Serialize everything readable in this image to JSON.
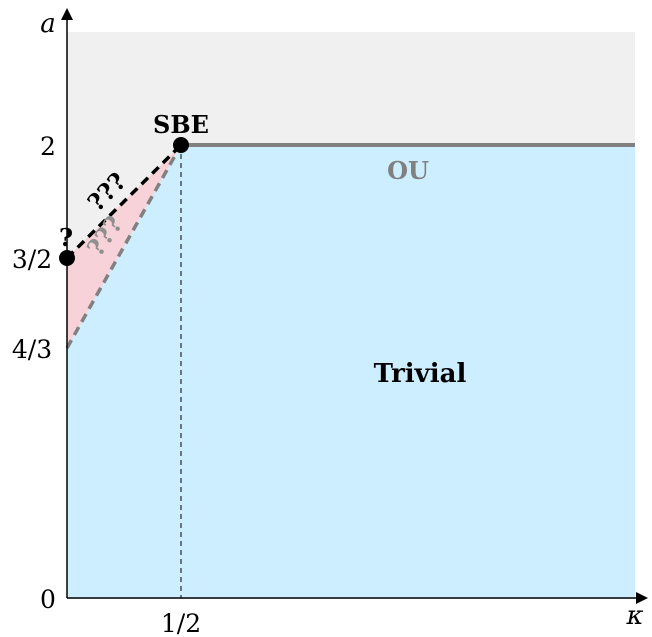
{
  "axes": {
    "y_label": "a",
    "x_label": "κ",
    "y_ticks": {
      "two": "2",
      "three_halves": "3/2",
      "four_thirds": "4/3",
      "zero": "0"
    },
    "x_ticks": {
      "half": "1/2"
    }
  },
  "regions": {
    "trivial": "Trivial",
    "ou": "OU",
    "sbe": "SBE"
  },
  "annotations": {
    "question_single": "?",
    "question_black": "???",
    "question_gray": "???"
  },
  "colors": {
    "upper_region": "#f0f0f0",
    "trivial_region": "#cdeeff",
    "pink_region": "#f7d2d9",
    "ou_line": "#808080",
    "black": "#000000"
  }
}
